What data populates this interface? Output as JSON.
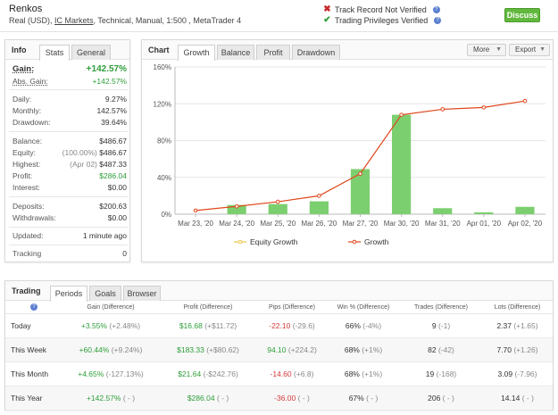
{
  "header": {
    "account_name": "Renkos",
    "info_prefix": "Real (USD), ",
    "broker": "IC Markets",
    "info_suffix": ", Technical, Manual, 1:500 , MetaTrader 4",
    "track_record": "Track Record Not Verified",
    "trading_privileges": "Trading Privileges Verified",
    "discuss_label": "Discuss",
    "help_glyph": "?"
  },
  "info": {
    "title": "Info",
    "tabs": [
      "Stats",
      "General"
    ],
    "gain_label": "Gain:",
    "gain_value": "+142.57%",
    "abs_gain_label": "Abs. Gain:",
    "abs_gain_value": "+142.57%",
    "daily_label": "Daily:",
    "daily_value": "9.27%",
    "monthly_label": "Monthly:",
    "monthly_value": "142.57%",
    "drawdown_label": "Drawdown:",
    "drawdown_value": "39.64%",
    "balance_label": "Balance:",
    "balance_value": "$486.67",
    "equity_label": "Equity:",
    "equity_pct": "(100.00%)",
    "equity_value": "$486.67",
    "highest_label": "Highest:",
    "highest_date": "(Apr 02)",
    "highest_value": "$487.33",
    "profit_label": "Profit:",
    "profit_value": "$286.04",
    "interest_label": "Interest:",
    "interest_value": "$0.00",
    "deposits_label": "Deposits:",
    "deposits_value": "$200.63",
    "withdrawals_label": "Withdrawals:",
    "withdrawals_value": "$0.00",
    "updated_label": "Updated:",
    "updated_value": "1 minute ago",
    "tracking_label": "Tracking",
    "tracking_value": "0"
  },
  "chart_panel": {
    "title": "Chart",
    "tabs": [
      "Growth",
      "Balance",
      "Profit",
      "Drawdown"
    ],
    "more_label": "More",
    "export_label": "Export",
    "caret_glyph": "▼"
  },
  "chart_data": {
    "type": "bar",
    "categories": [
      "Mar 23, '20",
      "Mar 24, '20",
      "Mar 25, '20",
      "Mar 26, '20",
      "Mar 27, '20",
      "Mar 30, '20",
      "Mar 31, '20",
      "Apr 01, '20",
      "Apr 02, '20"
    ],
    "series": [
      {
        "name": "Equity Growth",
        "kind": "line",
        "color": "#e8c547",
        "values": [
          null,
          null,
          null,
          null,
          null,
          null,
          null,
          null,
          null
        ]
      },
      {
        "name": "Growth",
        "kind": "line",
        "color": "#e0461c",
        "values": [
          4,
          8.5,
          13.5,
          20,
          44,
          108,
          114,
          116,
          123
        ]
      },
      {
        "kind": "bar",
        "color": "#7ccf6f",
        "values": [
          0,
          10,
          11,
          14,
          49,
          108,
          6.5,
          2,
          8
        ]
      }
    ],
    "yticks": [
      "0%",
      "40%",
      "80%",
      "120%",
      "160%"
    ],
    "ylim": [
      0,
      160
    ],
    "grid": true,
    "legend_position": "bottom"
  },
  "trading": {
    "title": "Trading",
    "tabs": [
      "Periods",
      "Goals",
      "Browser"
    ],
    "headers": [
      "Gain (Difference)",
      "Profit (Difference)",
      "Pips (Difference)",
      "Win % (Difference)",
      "Trades (Difference)",
      "Lots (Difference)"
    ],
    "rows": [
      {
        "period": "Today",
        "gain": "+3.55%",
        "gain_diff": "(+2.48%)",
        "profit": "$16.68",
        "profit_diff": "(+$11.72)",
        "pips": "-22.10",
        "pips_diff": "(-29.6)",
        "win": "66%",
        "win_diff": "(-4%)",
        "trades": "9",
        "trades_diff": "(-1)",
        "lots": "2.37",
        "lots_diff": "(+1.65)"
      },
      {
        "period": "This Week",
        "gain": "+60.44%",
        "gain_diff": "(+9.24%)",
        "profit": "$183.33",
        "profit_diff": "(+$80.62)",
        "pips": "94.10",
        "pips_diff": "(+224.2)",
        "win": "68%",
        "win_diff": "(+1%)",
        "trades": "82",
        "trades_diff": "(-42)",
        "lots": "7.70",
        "lots_diff": "(+1.26)"
      },
      {
        "period": "This Month",
        "gain": "+4.65%",
        "gain_diff": "(-127.13%)",
        "profit": "$21.64",
        "profit_diff": "(-$242.76)",
        "pips": "-14.60",
        "pips_diff": "(+6.8)",
        "win": "68%",
        "win_diff": "(+1%)",
        "trades": "19",
        "trades_diff": "(-168)",
        "lots": "3.09",
        "lots_diff": "(-7.96)"
      },
      {
        "period": "This Year",
        "gain": "+142.57%",
        "gain_diff": "( - )",
        "profit": "$286.04",
        "profit_diff": "( - )",
        "pips": "-36.00",
        "pips_diff": "( - )",
        "win": "67%",
        "win_diff": "( - )",
        "trades": "206",
        "trades_diff": "( - )",
        "lots": "14.14",
        "lots_diff": "( - )"
      }
    ]
  }
}
